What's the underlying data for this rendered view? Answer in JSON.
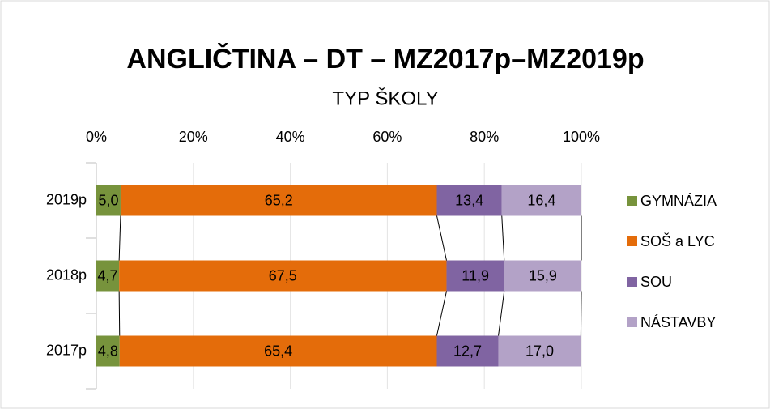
{
  "chart_data": {
    "type": "stacked_bar_horizontal",
    "title": "ANGLIČTINA – DT – MZ2017p–MZ2019p",
    "subtitle": "TYP ŠKOLY",
    "categories": [
      "2019p",
      "2018p",
      "2017p"
    ],
    "series": [
      {
        "name": "GYMNÁZIA",
        "color": "#77933c",
        "values": [
          5.0,
          4.7,
          4.8
        ],
        "value_labels": [
          "5,0",
          "4,7",
          "4,8"
        ]
      },
      {
        "name": "SOŠ a LYC",
        "color": "#e46c0a",
        "values": [
          65.2,
          67.5,
          65.4
        ],
        "value_labels": [
          "65,2",
          "67,5",
          "65,4"
        ]
      },
      {
        "name": "SOU",
        "color": "#8064a2",
        "values": [
          13.4,
          11.9,
          12.7
        ],
        "value_labels": [
          "13,4",
          "11,9",
          "12,7"
        ]
      },
      {
        "name": "NÁSTAVBY",
        "color": "#b3a2c7",
        "values": [
          16.4,
          15.9,
          17.0
        ],
        "value_labels": [
          "16,4",
          "15,9",
          "17,0"
        ]
      }
    ],
    "xlim": [
      0,
      100
    ],
    "xticks": [
      {
        "value": 0,
        "label": "0%"
      },
      {
        "value": 20,
        "label": "20%"
      },
      {
        "value": 40,
        "label": "40%"
      },
      {
        "value": 60,
        "label": "60%"
      },
      {
        "value": 80,
        "label": "80%"
      },
      {
        "value": 100,
        "label": "100%"
      }
    ],
    "grid": true,
    "legend": "right"
  }
}
